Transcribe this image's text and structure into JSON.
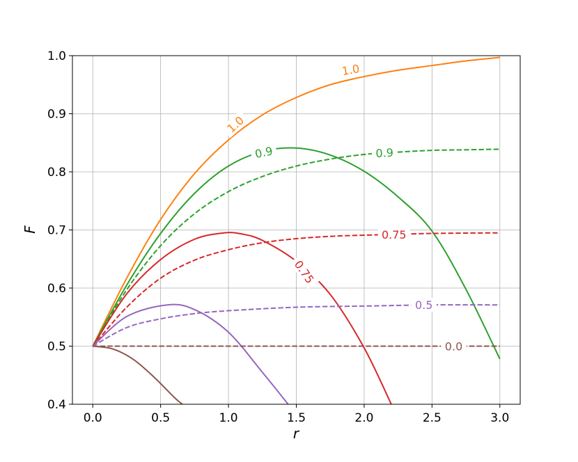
{
  "chart_data": {
    "type": "line",
    "title": "",
    "xlabel": "r",
    "ylabel": "F",
    "xlim": [
      -0.15,
      3.15
    ],
    "ylim": [
      0.4,
      1.0
    ],
    "x_ticks": [
      "0.0",
      "0.5",
      "1.0",
      "1.5",
      "2.0",
      "2.5",
      "3.0"
    ],
    "y_ticks": [
      "0.4",
      "0.5",
      "0.6",
      "0.7",
      "0.8",
      "0.9",
      "1.0"
    ],
    "grid": true,
    "legend": "none",
    "series": [
      {
        "label": "1.0",
        "color": "#ff7f0e",
        "dash": "solid",
        "points": [
          [
            0.0,
            0.5
          ],
          [
            0.25,
            0.617
          ],
          [
            0.5,
            0.718
          ],
          [
            0.75,
            0.797
          ],
          [
            1.0,
            0.855
          ],
          [
            1.25,
            0.898
          ],
          [
            1.5,
            0.928
          ],
          [
            1.75,
            0.95
          ],
          [
            2.0,
            0.964
          ],
          [
            2.25,
            0.975
          ],
          [
            2.5,
            0.983
          ],
          [
            2.75,
            0.991
          ],
          [
            3.0,
            0.997
          ]
        ]
      },
      {
        "label": "0.9",
        "color": "#2ca02c",
        "dash": "solid",
        "points": [
          [
            0.0,
            0.5
          ],
          [
            0.25,
            0.605
          ],
          [
            0.5,
            0.694
          ],
          [
            0.75,
            0.763
          ],
          [
            1.0,
            0.81
          ],
          [
            1.25,
            0.835
          ],
          [
            1.5,
            0.841
          ],
          [
            1.75,
            0.829
          ],
          [
            2.0,
            0.801
          ],
          [
            2.25,
            0.757
          ],
          [
            2.5,
            0.698
          ],
          [
            2.75,
            0.598
          ],
          [
            3.0,
            0.478
          ]
        ]
      },
      {
        "label": "0.9",
        "color": "#2ca02c",
        "dash": "dashed",
        "points": [
          [
            0.0,
            0.5
          ],
          [
            0.25,
            0.597
          ],
          [
            0.5,
            0.673
          ],
          [
            0.75,
            0.728
          ],
          [
            1.0,
            0.766
          ],
          [
            1.25,
            0.792
          ],
          [
            1.5,
            0.81
          ],
          [
            1.75,
            0.822
          ],
          [
            2.0,
            0.83
          ],
          [
            2.25,
            0.834
          ],
          [
            2.5,
            0.837
          ],
          [
            2.75,
            0.838
          ],
          [
            3.0,
            0.839
          ]
        ]
      },
      {
        "label": "0.75",
        "color": "#d62728",
        "dash": "solid",
        "points": [
          [
            0.0,
            0.5
          ],
          [
            0.25,
            0.59
          ],
          [
            0.5,
            0.649
          ],
          [
            0.75,
            0.684
          ],
          [
            0.97,
            0.695
          ],
          [
            1.1,
            0.693
          ],
          [
            1.25,
            0.682
          ],
          [
            1.5,
            0.646
          ],
          [
            1.75,
            0.589
          ],
          [
            2.0,
            0.497
          ],
          [
            2.2,
            0.4
          ]
        ]
      },
      {
        "label": "0.75",
        "color": "#d62728",
        "dash": "dashed",
        "points": [
          [
            0.0,
            0.5
          ],
          [
            0.25,
            0.567
          ],
          [
            0.5,
            0.617
          ],
          [
            0.75,
            0.648
          ],
          [
            1.0,
            0.666
          ],
          [
            1.25,
            0.678
          ],
          [
            1.5,
            0.685
          ],
          [
            1.75,
            0.689
          ],
          [
            2.0,
            0.691
          ],
          [
            2.5,
            0.694
          ],
          [
            3.0,
            0.695
          ]
        ]
      },
      {
        "label": "",
        "color": "#9467bd",
        "dash": "solid",
        "points": [
          [
            0.0,
            0.5
          ],
          [
            0.25,
            0.551
          ],
          [
            0.55,
            0.571
          ],
          [
            0.75,
            0.563
          ],
          [
            1.0,
            0.524
          ],
          [
            1.25,
            0.455
          ],
          [
            1.44,
            0.4
          ]
        ]
      },
      {
        "label": "0.5",
        "color": "#9467bd",
        "dash": "dashed",
        "points": [
          [
            0.0,
            0.5
          ],
          [
            0.25,
            0.532
          ],
          [
            0.5,
            0.547
          ],
          [
            0.75,
            0.556
          ],
          [
            1.0,
            0.561
          ],
          [
            1.5,
            0.567
          ],
          [
            2.0,
            0.569
          ],
          [
            2.5,
            0.571
          ],
          [
            3.0,
            0.571
          ]
        ]
      },
      {
        "label": "",
        "color": "#8c564b",
        "dash": "solid",
        "points": [
          [
            0.0,
            0.5
          ],
          [
            0.15,
            0.495
          ],
          [
            0.3,
            0.477
          ],
          [
            0.45,
            0.447
          ],
          [
            0.6,
            0.412
          ],
          [
            0.66,
            0.4
          ]
        ]
      },
      {
        "label": "0.0",
        "color": "#8c564b",
        "dash": "dashed",
        "points": [
          [
            0.0,
            0.5
          ],
          [
            1.0,
            0.5
          ],
          [
            2.0,
            0.5
          ],
          [
            3.0,
            0.5
          ]
        ]
      }
    ],
    "inline_labels": [
      {
        "text": "1.0",
        "color": "#ff7f0e",
        "x": 1.9,
        "y": 0.976,
        "rotate": -10
      },
      {
        "text": "1.0",
        "color": "#ff7f0e",
        "x": 1.05,
        "y": 0.882,
        "rotate": -42
      },
      {
        "text": "0.9",
        "color": "#2ca02c",
        "x": 1.26,
        "y": 0.834,
        "rotate": -12
      },
      {
        "text": "0.9",
        "color": "#2ca02c",
        "x": 2.15,
        "y": 0.833,
        "rotate": -3
      },
      {
        "text": "0.75",
        "color": "#d62728",
        "x": 2.22,
        "y": 0.692,
        "rotate": 0
      },
      {
        "text": "0.75",
        "color": "#d62728",
        "x": 1.56,
        "y": 0.628,
        "rotate": 55
      },
      {
        "text": "0.5",
        "color": "#9467bd",
        "x": 2.44,
        "y": 0.571,
        "rotate": 0
      },
      {
        "text": "0.0",
        "color": "#8c564b",
        "x": 2.66,
        "y": 0.5,
        "rotate": 0
      }
    ]
  }
}
